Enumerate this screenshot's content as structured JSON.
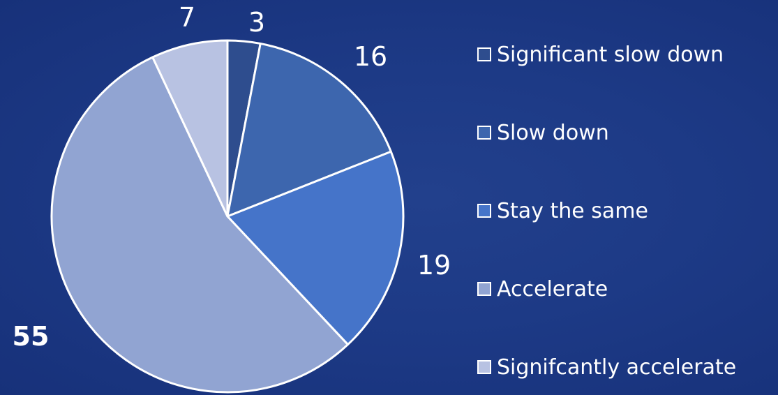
{
  "chart_data": {
    "type": "pie",
    "title": "",
    "categories": [
      "Significant slow down",
      "Slow down",
      "Stay the same",
      "Accelerate",
      "Signifcantly accelerate"
    ],
    "values": [
      3,
      16,
      19,
      55,
      7
    ],
    "data_labels": [
      "3",
      "16",
      "19",
      "55",
      "7"
    ],
    "colors": [
      "#2e4d8e",
      "#3d66ae",
      "#4574c9",
      "#91a4d2",
      "#b8c2e2"
    ],
    "start_angle_deg": 0,
    "direction": "clockwise",
    "legend_position": "right"
  }
}
